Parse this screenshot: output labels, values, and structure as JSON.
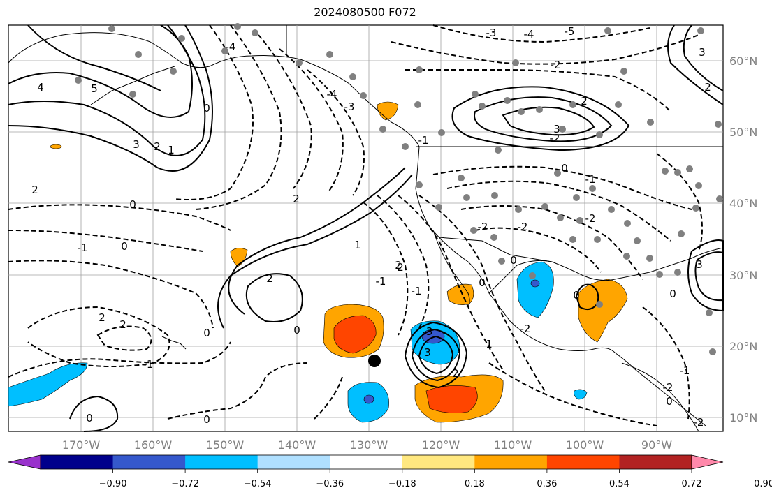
{
  "title": "2024080500 F072",
  "map": {
    "projection": "PlateCarree",
    "lon_range": [
      180,
      81
    ],
    "lat_range": [
      6.5,
      63.5
    ],
    "lon_ticks": [
      "170°W",
      "160°W",
      "150°W",
      "140°W",
      "130°W",
      "120°W",
      "110°W",
      "100°W",
      "90°W"
    ],
    "lat_ticks": [
      "10°N",
      "20°N",
      "30°N",
      "40°N",
      "50°N",
      "60°N"
    ],
    "gridlines": true,
    "field_contours": "solid = positive, dashed = negative",
    "contour_labels": [
      "4",
      "5",
      "3",
      "2",
      "1",
      "0",
      "-1",
      "-2",
      "-3",
      "-4",
      "-5"
    ],
    "marker": "black dot near 130°W 18°N",
    "stations": "gray dots"
  },
  "colorbar": {
    "ticks": [
      "−0.90",
      "−0.72",
      "−0.54",
      "−0.36",
      "−0.18",
      "0.18",
      "0.36",
      "0.54",
      "0.72",
      "0.90"
    ],
    "colors": [
      "#9932cc",
      "#00008b",
      "#3558cc",
      "#00bfff",
      "#b0e0ff",
      "#ffffff",
      "#ffe880",
      "#ffa500",
      "#ff4500",
      "#b22222",
      "#ff88aa"
    ],
    "extend": "both"
  }
}
